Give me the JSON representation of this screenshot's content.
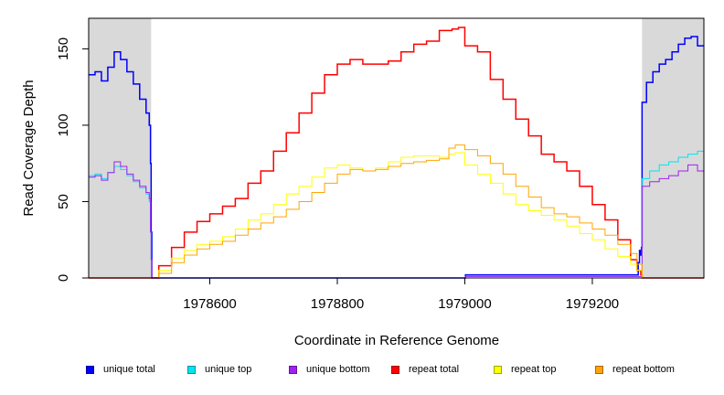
{
  "chart_data": {
    "type": "line",
    "title": "",
    "xlabel": "Coordinate in Reference Genome",
    "ylabel": "Read Coverage Depth",
    "xlim": [
      1978410,
      1979375
    ],
    "ylim": [
      0,
      170
    ],
    "xticks": [
      1978600,
      1978800,
      1979000,
      1979200
    ],
    "xtick_labels": [
      "1978600",
      "1978800",
      "1979000",
      "1979200"
    ],
    "yticks": [
      0,
      50,
      100,
      150
    ],
    "ytick_labels": [
      "0",
      "50",
      "100",
      "150"
    ],
    "grid": false,
    "legend_position": "bottom",
    "shaded_regions": [
      {
        "x_start": 1978410,
        "x_end": 1978508,
        "color": "#d9d9d9"
      },
      {
        "x_start": 1979278,
        "x_end": 1979375,
        "color": "#d9d9d9"
      }
    ],
    "series": [
      {
        "name": "unique total",
        "color": "#0000ff",
        "x": [
          1978410,
          1978420,
          1978430,
          1978440,
          1978450,
          1978460,
          1978470,
          1978480,
          1978490,
          1978500,
          1978505,
          1978507,
          1978508,
          1978509,
          1979000,
          1979001,
          1979270,
          1979272,
          1979274,
          1979276,
          1979277,
          1979278,
          1979285,
          1979295,
          1979305,
          1979315,
          1979325,
          1979335,
          1979345,
          1979355,
          1979365,
          1979375
        ],
        "y": [
          133,
          135,
          129,
          138,
          148,
          143,
          135,
          127,
          117,
          108,
          100,
          75,
          30,
          0,
          0,
          2,
          2,
          10,
          18,
          15,
          20,
          115,
          128,
          135,
          140,
          143,
          148,
          153,
          157,
          158,
          152,
          152
        ]
      },
      {
        "name": "unique top",
        "color": "#00e5ee",
        "x": [
          1978410,
          1978420,
          1978430,
          1978440,
          1978450,
          1978460,
          1978470,
          1978480,
          1978490,
          1978500,
          1978505,
          1978507,
          1978508,
          1978509,
          1979000,
          1979001,
          1979277,
          1979278,
          1979290,
          1979305,
          1979320,
          1979335,
          1979350,
          1979365,
          1979375
        ],
        "y": [
          67,
          68,
          65,
          69,
          73,
          71,
          67,
          63,
          59,
          55,
          50,
          30,
          12,
          0,
          0,
          1,
          1,
          65,
          70,
          74,
          76,
          79,
          81,
          83,
          83
        ]
      },
      {
        "name": "unique bottom",
        "color": "#a020f0",
        "x": [
          1978410,
          1978420,
          1978430,
          1978440,
          1978450,
          1978460,
          1978470,
          1978480,
          1978490,
          1978500,
          1978505,
          1978507,
          1978508,
          1978509,
          1979000,
          1979001,
          1979277,
          1979278,
          1979290,
          1979305,
          1979320,
          1979335,
          1979350,
          1979365,
          1979375
        ],
        "y": [
          66,
          67,
          64,
          69,
          76,
          73,
          68,
          64,
          60,
          56,
          52,
          30,
          12,
          0,
          0,
          1,
          1,
          60,
          63,
          65,
          67,
          70,
          74,
          70,
          69
        ]
      },
      {
        "name": "repeat total",
        "color": "#ff0000",
        "x": [
          1978410,
          1978508,
          1978520,
          1978540,
          1978560,
          1978580,
          1978600,
          1978620,
          1978640,
          1978660,
          1978680,
          1978700,
          1978720,
          1978740,
          1978760,
          1978780,
          1978800,
          1978820,
          1978840,
          1978860,
          1978880,
          1978900,
          1978920,
          1978940,
          1978960,
          1978980,
          1978990,
          1979000,
          1979020,
          1979040,
          1979060,
          1979080,
          1979100,
          1979120,
          1979140,
          1979160,
          1979180,
          1979200,
          1979220,
          1979240,
          1979260,
          1979270,
          1979276,
          1979278,
          1979375
        ],
        "y": [
          0,
          0,
          8,
          20,
          30,
          37,
          42,
          47,
          52,
          62,
          70,
          83,
          95,
          108,
          121,
          133,
          140,
          143,
          140,
          140,
          142,
          148,
          153,
          155,
          162,
          163,
          164,
          152,
          148,
          130,
          117,
          104,
          93,
          81,
          76,
          70,
          60,
          48,
          38,
          25,
          12,
          5,
          2,
          0,
          0
        ]
      },
      {
        "name": "repeat top",
        "color": "#ffff00",
        "x": [
          1978410,
          1978508,
          1978520,
          1978540,
          1978560,
          1978580,
          1978600,
          1978620,
          1978640,
          1978660,
          1978680,
          1978700,
          1978720,
          1978740,
          1978760,
          1978780,
          1978800,
          1978820,
          1978840,
          1978860,
          1978880,
          1978900,
          1978920,
          1978940,
          1978960,
          1978975,
          1978985,
          1979000,
          1979020,
          1979040,
          1979060,
          1979080,
          1979100,
          1979120,
          1979140,
          1979160,
          1979180,
          1979200,
          1979220,
          1979240,
          1979260,
          1979270,
          1979278,
          1979375
        ],
        "y": [
          0,
          0,
          5,
          13,
          18,
          22,
          24,
          27,
          32,
          38,
          42,
          48,
          55,
          60,
          66,
          72,
          74,
          72,
          70,
          72,
          76,
          79,
          80,
          80,
          79,
          81,
          82,
          74,
          68,
          62,
          55,
          48,
          44,
          41,
          38,
          34,
          29,
          25,
          19,
          14,
          9,
          5,
          0,
          0
        ]
      },
      {
        "name": "repeat bottom",
        "color": "#ffa500",
        "x": [
          1978410,
          1978508,
          1978520,
          1978540,
          1978560,
          1978580,
          1978600,
          1978620,
          1978640,
          1978660,
          1978680,
          1978700,
          1978720,
          1978740,
          1978760,
          1978780,
          1978800,
          1978820,
          1978840,
          1978860,
          1978880,
          1978900,
          1978920,
          1978940,
          1978960,
          1978975,
          1978985,
          1979000,
          1979020,
          1979040,
          1979060,
          1979080,
          1979100,
          1979120,
          1979140,
          1979160,
          1979180,
          1979200,
          1979220,
          1979240,
          1979260,
          1979270,
          1979278,
          1979375
        ],
        "y": [
          0,
          0,
          3,
          10,
          15,
          19,
          22,
          24,
          28,
          32,
          36,
          40,
          45,
          50,
          56,
          62,
          68,
          71,
          70,
          71,
          73,
          75,
          76,
          77,
          78,
          85,
          87,
          84,
          80,
          75,
          68,
          60,
          53,
          46,
          42,
          40,
          36,
          32,
          28,
          22,
          16,
          9,
          0,
          0
        ]
      }
    ]
  }
}
